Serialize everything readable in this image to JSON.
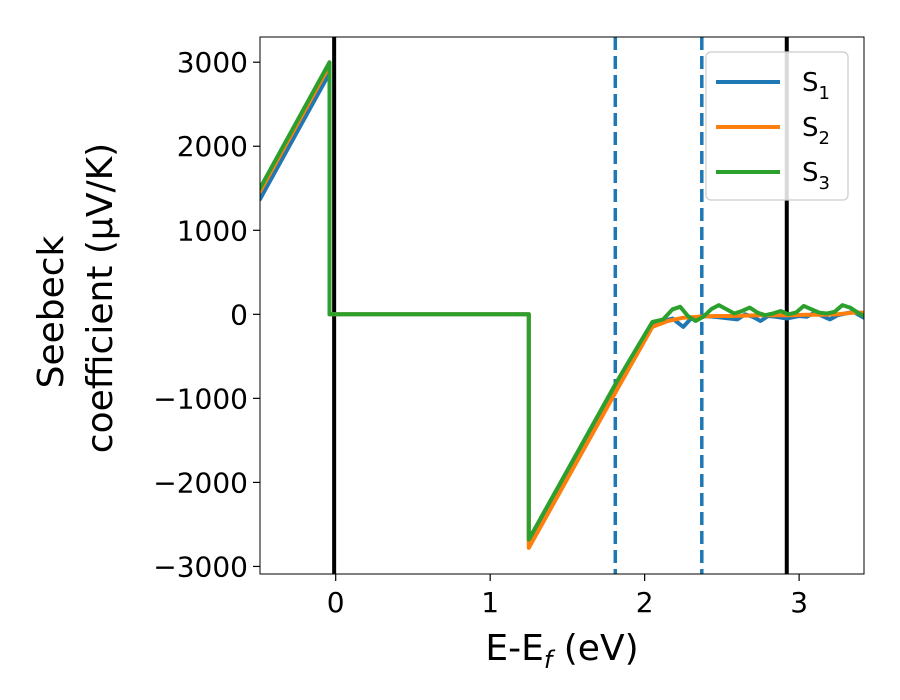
{
  "chart_data": {
    "type": "line",
    "xlabel": "E-E",
    "xlabel_sub": "f",
    "xlabel_unit": " (eV)",
    "ylabel_line1": "Seebeck",
    "ylabel_line2": "coefficient  (μV/K)",
    "xlim": [
      -0.49,
      3.42
    ],
    "ylim": [
      -3090,
      3300
    ],
    "x_ticks": [
      0,
      1,
      2,
      3
    ],
    "x_tick_labels": [
      "0",
      "1",
      "2",
      "3"
    ],
    "y_ticks": [
      3000,
      2000,
      1000,
      0,
      -1000,
      -2000,
      -3000
    ],
    "y_tick_labels": [
      "3000",
      "2000",
      "1000",
      "0",
      "−1000",
      "−2000",
      "−3000"
    ],
    "grid": false,
    "legend_position": "top-right",
    "vlines": [
      {
        "x": -0.01,
        "style": "solid",
        "color": "#000000"
      },
      {
        "x": 1.81,
        "style": "dashed",
        "color": "#1f77b4"
      },
      {
        "x": 2.37,
        "style": "dashed",
        "color": "#1f77b4"
      },
      {
        "x": 2.92,
        "style": "solid",
        "color": "#000000"
      }
    ],
    "series": [
      {
        "name": "S",
        "sub": "1",
        "color": "#1f77b4",
        "points": [
          [
            -0.49,
            1370
          ],
          [
            -0.04,
            2870
          ],
          [
            -0.04,
            0
          ],
          [
            1.25,
            0
          ],
          [
            1.25,
            -2700
          ],
          [
            1.82,
            -820
          ],
          [
            2.05,
            -120
          ],
          [
            2.12,
            -80
          ],
          [
            2.18,
            -50
          ],
          [
            2.25,
            -150
          ],
          [
            2.3,
            -50
          ],
          [
            2.38,
            -20
          ],
          [
            2.45,
            -30
          ],
          [
            2.55,
            -50
          ],
          [
            2.6,
            -60
          ],
          [
            2.65,
            0
          ],
          [
            2.7,
            -30
          ],
          [
            2.75,
            -80
          ],
          [
            2.8,
            -20
          ],
          [
            2.85,
            -30
          ],
          [
            2.92,
            -50
          ],
          [
            3.0,
            -20
          ],
          [
            3.05,
            -30
          ],
          [
            3.1,
            20
          ],
          [
            3.15,
            -20
          ],
          [
            3.2,
            -60
          ],
          [
            3.25,
            -10
          ],
          [
            3.3,
            10
          ],
          [
            3.35,
            30
          ],
          [
            3.42,
            -40
          ]
        ]
      },
      {
        "name": "S",
        "sub": "2",
        "color": "#ff7f0e",
        "points": [
          [
            -0.49,
            1460
          ],
          [
            -0.04,
            2960
          ],
          [
            -0.04,
            0
          ],
          [
            1.25,
            0
          ],
          [
            1.25,
            -2780
          ],
          [
            1.82,
            -900
          ],
          [
            2.05,
            -150
          ],
          [
            2.15,
            -80
          ],
          [
            2.25,
            -40
          ],
          [
            2.35,
            -30
          ],
          [
            2.45,
            -20
          ],
          [
            2.55,
            -20
          ],
          [
            2.65,
            -15
          ],
          [
            2.75,
            -10
          ],
          [
            2.85,
            -10
          ],
          [
            2.95,
            -10
          ],
          [
            3.05,
            -5
          ],
          [
            3.15,
            -5
          ],
          [
            3.25,
            0
          ],
          [
            3.35,
            20
          ],
          [
            3.42,
            20
          ]
        ]
      },
      {
        "name": "S",
        "sub": "3",
        "color": "#2ca02c",
        "points": [
          [
            -0.49,
            1500
          ],
          [
            -0.04,
            3000
          ],
          [
            -0.04,
            0
          ],
          [
            1.25,
            0
          ],
          [
            1.25,
            -2680
          ],
          [
            1.82,
            -800
          ],
          [
            2.05,
            -90
          ],
          [
            2.12,
            -60
          ],
          [
            2.18,
            60
          ],
          [
            2.23,
            90
          ],
          [
            2.28,
            -20
          ],
          [
            2.33,
            -80
          ],
          [
            2.38,
            -30
          ],
          [
            2.43,
            60
          ],
          [
            2.48,
            110
          ],
          [
            2.53,
            60
          ],
          [
            2.58,
            10
          ],
          [
            2.63,
            40
          ],
          [
            2.68,
            80
          ],
          [
            2.73,
            20
          ],
          [
            2.78,
            -10
          ],
          [
            2.83,
            10
          ],
          [
            2.88,
            40
          ],
          [
            2.93,
            0
          ],
          [
            2.98,
            20
          ],
          [
            3.03,
            100
          ],
          [
            3.08,
            60
          ],
          [
            3.13,
            20
          ],
          [
            3.18,
            10
          ],
          [
            3.23,
            30
          ],
          [
            3.28,
            110
          ],
          [
            3.33,
            80
          ],
          [
            3.38,
            20
          ],
          [
            3.42,
            -20
          ]
        ]
      }
    ]
  }
}
